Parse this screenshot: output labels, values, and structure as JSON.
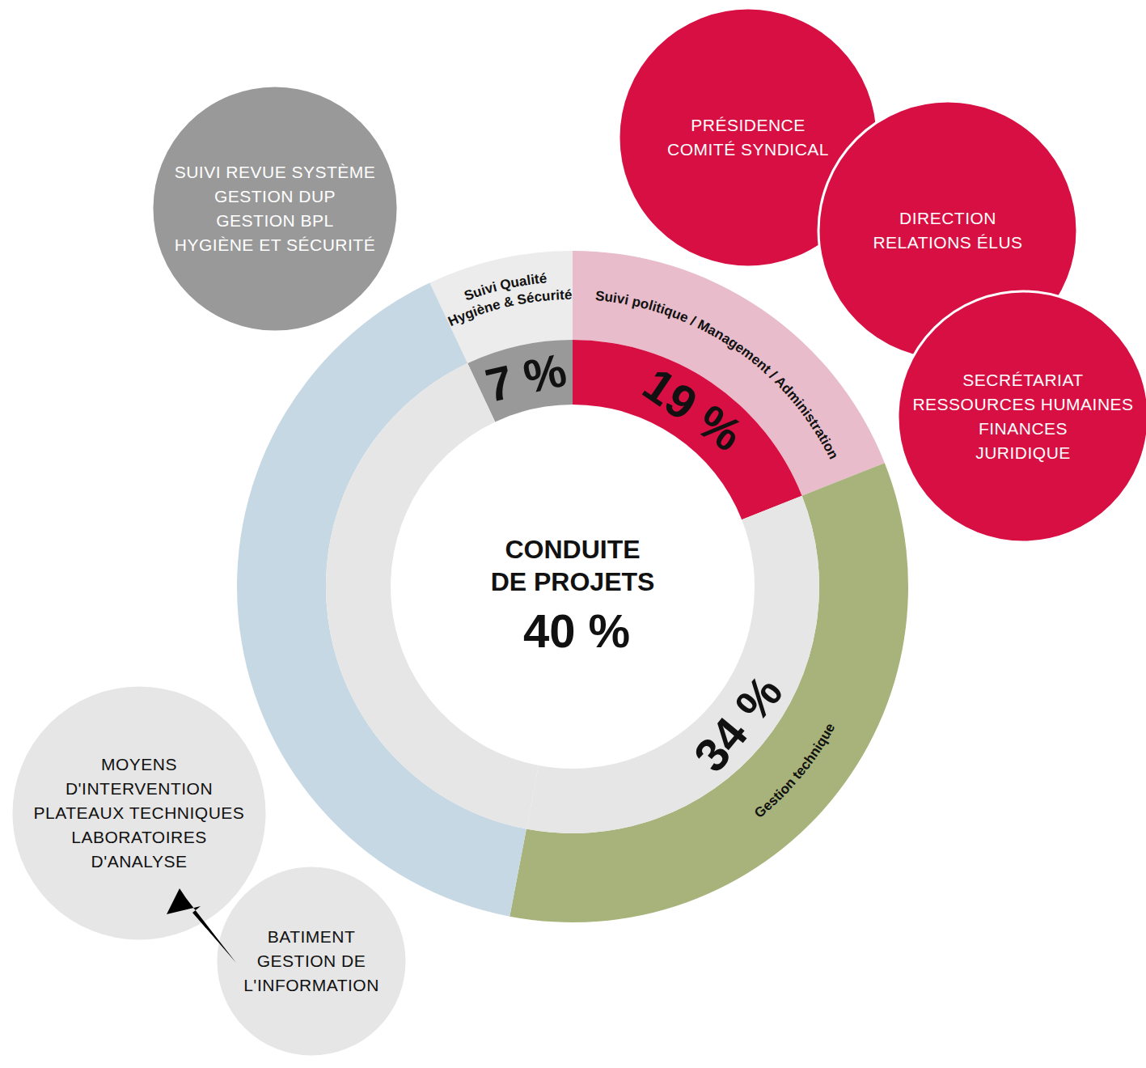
{
  "chart_data": {
    "type": "donut",
    "categories": [
      "Suivi Qualité\nHygiène & Sécurité",
      "Suivi politique / Management / Administration",
      "Gestion technique"
    ],
    "values": [
      7,
      19,
      34
    ],
    "value_labels": [
      "7 %",
      "19 %",
      "34 %"
    ],
    "colors": [
      "#999999",
      "#d80f42",
      "#e6e6e6"
    ],
    "data_labels": true,
    "center": {
      "label": "CONDUITE\nDE PROJETS",
      "value": 40,
      "value_label": "40 %",
      "color": "#e6e6e6"
    },
    "annotations": [
      {
        "color": "#999999",
        "bubbles": [
          [
            "SUIVI REVUE SYSTÈME",
            "GESTION DUP",
            "GESTION BPL",
            "HYGIÈNE ET SÉCURITÉ"
          ]
        ]
      },
      {
        "color": "#d80f42",
        "bubbles": [
          [
            "PRÉSIDENCE",
            "COMITÉ SYNDICAL"
          ],
          [
            "DIRECTION",
            "RELATIONS ÉLUS"
          ],
          [
            "SECRÉTARIAT",
            "RESSOURCES HUMAINES",
            "FINANCES",
            "JURIDIQUE"
          ]
        ]
      },
      {
        "color": "#e6e6e6",
        "bubbles": [
          [
            "MOYENS",
            "D'INTERVENTION",
            "PLATEAUX TECHNIQUES",
            "LABORATOIRES",
            "D'ANALYSE"
          ],
          [
            "BATIMENT",
            "GESTION DE",
            "L'INFORMATION"
          ]
        ]
      }
    ]
  }
}
